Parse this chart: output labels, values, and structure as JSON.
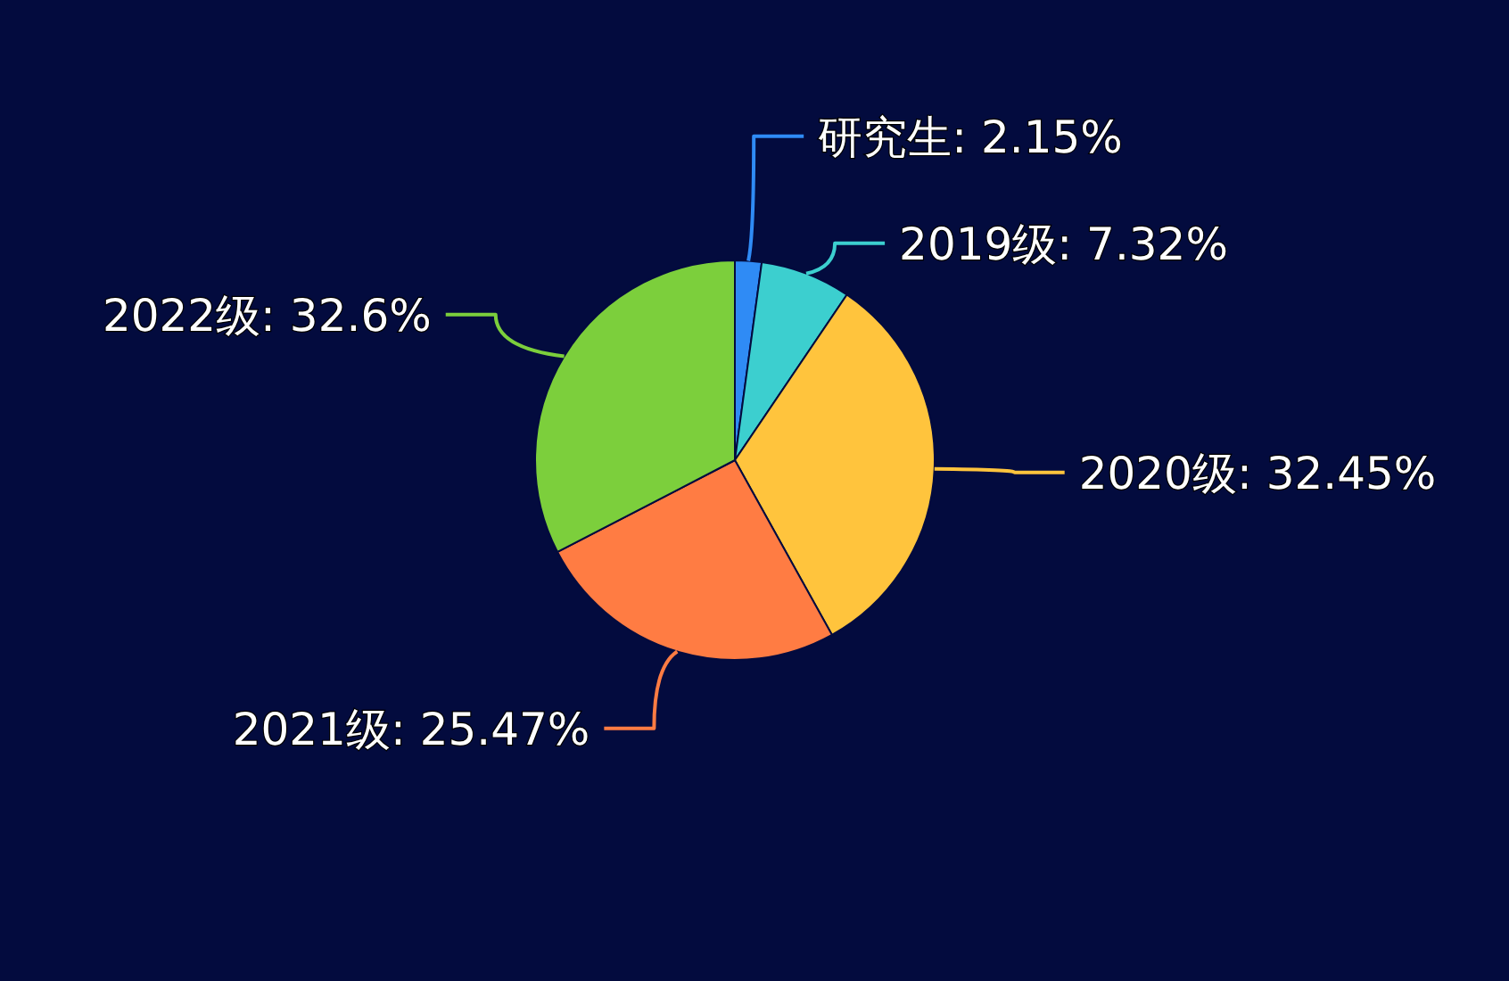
{
  "chart_data": {
    "type": "pie",
    "categories": [
      "研究生",
      "2019级",
      "2020级",
      "2021级",
      "2022级"
    ],
    "values": [
      2.15,
      7.32,
      32.45,
      25.47,
      32.6
    ],
    "value_labels": [
      "2.15%",
      "7.32%",
      "32.45%",
      "25.47%",
      "32.6%"
    ],
    "colors": [
      "#2f8bf5",
      "#3ccfcf",
      "#ffc43d",
      "#ff7c43",
      "#7ccf3c"
    ]
  }
}
